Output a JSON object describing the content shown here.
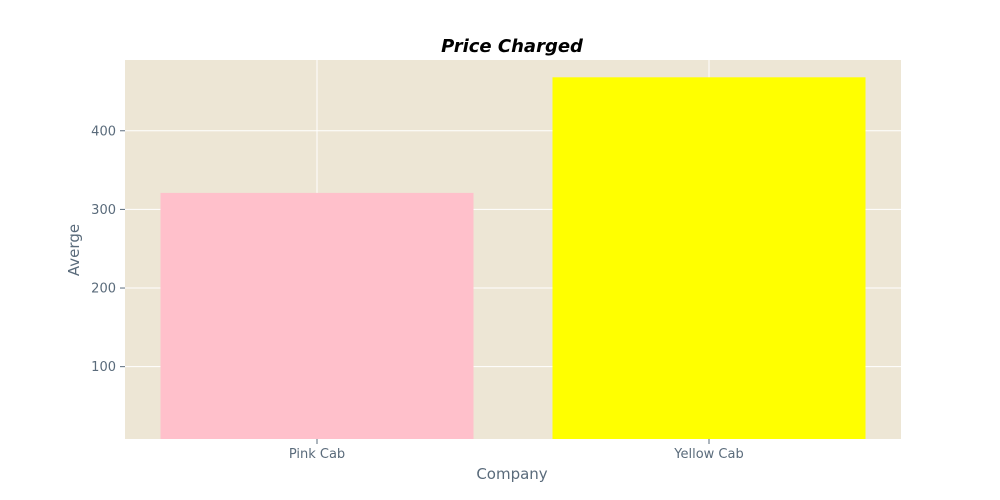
{
  "chart_data": {
    "type": "bar",
    "title": "Price Charged",
    "xlabel": "Company",
    "ylabel": "Averge",
    "categories": [
      "Pink Cab",
      "Yellow Cab"
    ],
    "values": [
      321,
      468
    ],
    "colors": [
      "#ffc0cb",
      "#ffff00"
    ],
    "ylim": [
      8,
      490
    ],
    "yticks": [
      100,
      200,
      300,
      400
    ],
    "grid": true,
    "background": "#ede6d5",
    "gridColor": "#ffffff"
  }
}
